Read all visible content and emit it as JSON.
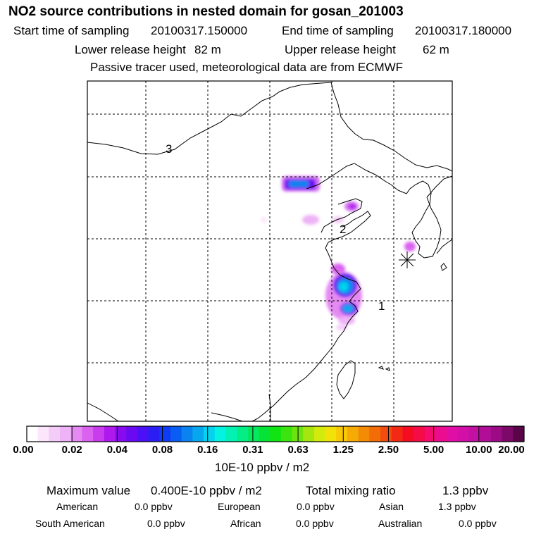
{
  "header": {
    "title": "NO2 source contributions in nested domain for gosan_201003",
    "start_label": "Start time of sampling",
    "start_value": "20100317.150000",
    "end_label": "End time of sampling",
    "end_value": "20100317.180000",
    "lower_label": "Lower release height",
    "lower_value": "82 m",
    "upper_label": "Upper release height",
    "upper_value": "62 m",
    "note": "Passive tracer used, meteorological data are from ECMWF"
  },
  "chart_data": {
    "type": "heatmap",
    "title": "NO2 source contributions in nested domain for gosan_201003",
    "grid": true,
    "markers": [
      "1",
      "2",
      "3"
    ],
    "receptor_symbol": "*",
    "colorbar": {
      "tick_labels": [
        "0.00",
        "0.02",
        "0.04",
        "0.08",
        "0.16",
        "0.31",
        "0.63",
        "1.25",
        "2.50",
        "5.00",
        "10.00",
        "20.00"
      ],
      "unit": "10E-10 ppbv / m2",
      "colors": [
        "#ffffff",
        "#fbe6fb",
        "#f4ccf8",
        "#eeb2f6",
        "#e48af2",
        "#da62ef",
        "#c93cee",
        "#b019ee",
        "#8a0af0",
        "#6a0af3",
        "#4b10f5",
        "#2a1ef5",
        "#0f3bf4",
        "#0a5df2",
        "#0a82f0",
        "#08a6ef",
        "#04d2ee",
        "#04f2e0",
        "#03f2b4",
        "#04ee88",
        "#05e85e",
        "#06e336",
        "#10e413",
        "#3be40f",
        "#6ee40e",
        "#a4e60d",
        "#d2ea0c",
        "#f2e20a",
        "#f9c806",
        "#f6aa05",
        "#f48b04",
        "#f26c08",
        "#f24c0e",
        "#f22a14",
        "#f40d22",
        "#f50b46",
        "#f40c70",
        "#ec0c90",
        "#e00ea4",
        "#d210a8",
        "#c211a2",
        "#b00e96",
        "#9a0b84",
        "#7c0868",
        "#5a0548"
      ]
    }
  },
  "stats": {
    "max_label": "Maximum value",
    "max_value": "0.400E-10 ppbv / m2",
    "total_label": "Total mixing ratio",
    "total_value": "1.3 ppbv",
    "regions": [
      {
        "name": "American",
        "value": "0.0 ppbv"
      },
      {
        "name": "European",
        "value": "0.0 ppbv"
      },
      {
        "name": "Asian",
        "value": "1.3 ppbv"
      },
      {
        "name": "South American",
        "value": "0.0 ppbv"
      },
      {
        "name": "African",
        "value": "0.0 ppbv"
      },
      {
        "name": "Australian",
        "value": "0.0 ppbv"
      }
    ]
  }
}
